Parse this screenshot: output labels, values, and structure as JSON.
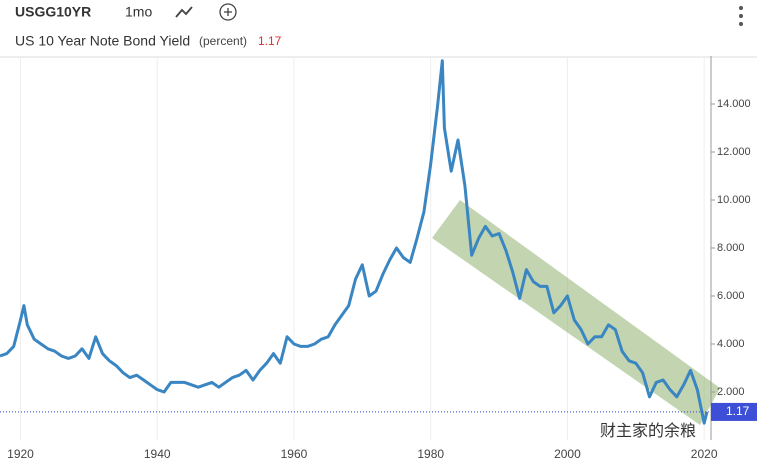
{
  "header": {
    "ticker": "USGG10YR",
    "interval": "1mo"
  },
  "watermark": "财主家的余粮",
  "chart_data": {
    "type": "line",
    "title": "US 10 Year Note Bond Yield",
    "unit": "(percent)",
    "last_value": 1.17,
    "x": [
      1917,
      1918,
      1919,
      1920,
      1920.5,
      1921,
      1922,
      1923,
      1924,
      1925,
      1926,
      1927,
      1928,
      1929,
      1930,
      1931,
      1932,
      1933,
      1934,
      1935,
      1936,
      1937,
      1938,
      1939,
      1940,
      1941,
      1942,
      1943,
      1944,
      1945,
      1946,
      1947,
      1948,
      1949,
      1950,
      1951,
      1952,
      1953,
      1954,
      1955,
      1956,
      1957,
      1958,
      1959,
      1960,
      1961,
      1962,
      1963,
      1964,
      1965,
      1966,
      1967,
      1968,
      1969,
      1970,
      1971,
      1972,
      1973,
      1974,
      1975,
      1976,
      1977,
      1978,
      1979,
      1980,
      1981,
      1981.7,
      1982,
      1983,
      1984,
      1985,
      1986,
      1987,
      1988,
      1989,
      1990,
      1991,
      1992,
      1993,
      1994,
      1995,
      1996,
      1997,
      1998,
      1999,
      2000,
      2001,
      2002,
      2003,
      2004,
      2005,
      2006,
      2007,
      2008,
      2009,
      2010,
      2011,
      2012,
      2013,
      2014,
      2015,
      2016,
      2017,
      2018,
      2019,
      2020,
      2020.4
    ],
    "series": [
      {
        "name": "USGG10YR",
        "color": "#3a86c2",
        "values": [
          3.5,
          3.6,
          3.9,
          5.0,
          5.6,
          4.8,
          4.2,
          4.0,
          3.8,
          3.7,
          3.5,
          3.4,
          3.5,
          3.8,
          3.4,
          4.3,
          3.6,
          3.3,
          3.1,
          2.8,
          2.6,
          2.7,
          2.5,
          2.3,
          2.1,
          2.0,
          2.4,
          2.4,
          2.4,
          2.3,
          2.2,
          2.3,
          2.4,
          2.2,
          2.4,
          2.6,
          2.7,
          2.9,
          2.5,
          2.9,
          3.2,
          3.6,
          3.2,
          4.3,
          4.0,
          3.9,
          3.9,
          4.0,
          4.2,
          4.3,
          4.8,
          5.2,
          5.6,
          6.7,
          7.3,
          6.0,
          6.2,
          6.9,
          7.5,
          8.0,
          7.6,
          7.4,
          8.4,
          9.5,
          11.5,
          13.9,
          15.8,
          13.0,
          11.2,
          12.5,
          10.6,
          7.7,
          8.4,
          8.9,
          8.5,
          8.6,
          7.9,
          7.0,
          5.9,
          7.1,
          6.6,
          6.4,
          6.4,
          5.3,
          5.6,
          6.0,
          5.0,
          4.6,
          4.0,
          4.3,
          4.3,
          4.8,
          4.6,
          3.7,
          3.3,
          3.2,
          2.8,
          1.8,
          2.4,
          2.5,
          2.1,
          1.8,
          2.3,
          2.9,
          2.1,
          0.7,
          1.17
        ]
      }
    ],
    "xlim": [
      1917,
      2021
    ],
    "ylim": [
      0,
      16
    ],
    "xticks": [
      1920,
      1940,
      1960,
      1980,
      2000,
      2020
    ],
    "yticks": [
      {
        "value": 2,
        "label": "2.000"
      },
      {
        "value": 4,
        "label": "4.000"
      },
      {
        "value": 6,
        "label": "6.000"
      },
      {
        "value": 8,
        "label": "8.000"
      },
      {
        "value": 10,
        "label": "10.000"
      },
      {
        "value": 12,
        "label": "12.000"
      },
      {
        "value": 14,
        "label": "14.000"
      }
    ],
    "grid": true
  }
}
